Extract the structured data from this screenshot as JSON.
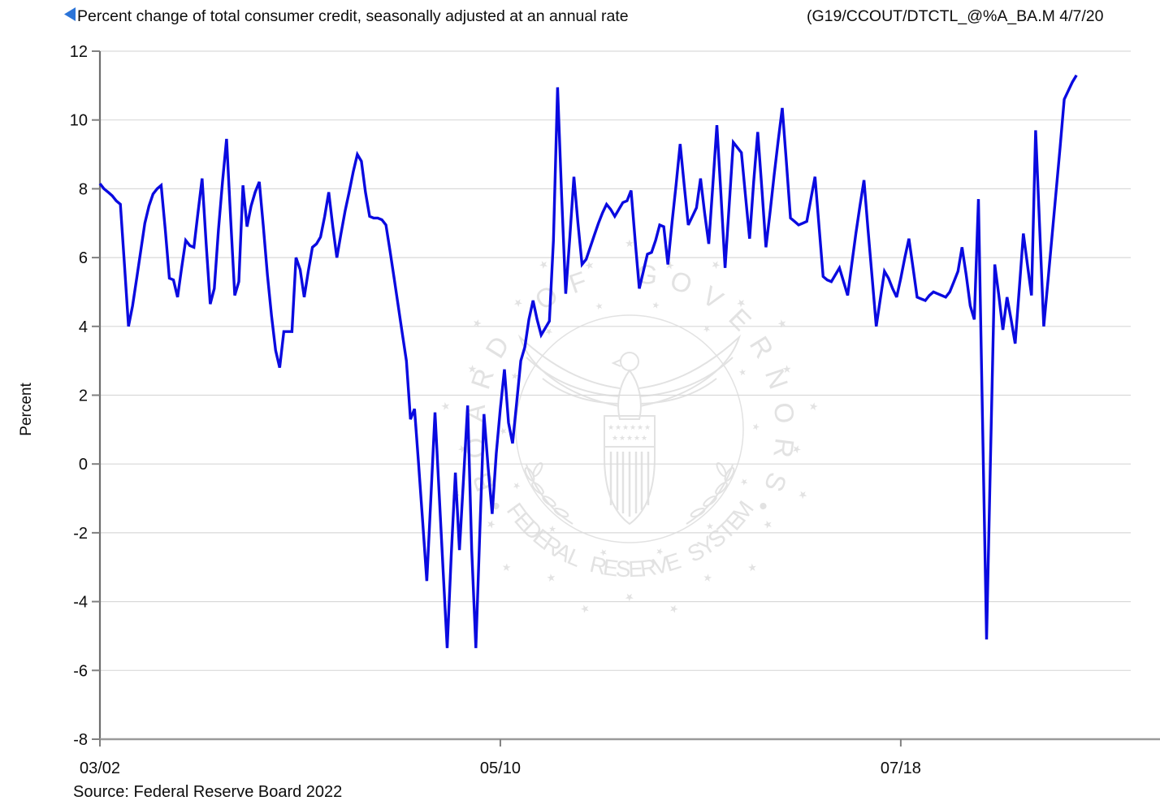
{
  "header": {
    "title": "Percent change of total consumer credit, seasonally adjusted at an annual rate",
    "series_code": "(G19/CCOUT/DTCTL_@%A_BA.M 4/7/20",
    "arrow_icon": "left-triangle-icon",
    "arrow_color": "#2b74d8"
  },
  "footer": {
    "source": "Source: Federal Reserve Board 2022"
  },
  "watermark": {
    "name": "federal-reserve-seal",
    "top_text": "BOARD OF GOVERNORS",
    "bottom_text": "FEDERAL RESERVE SYSTEM",
    "separator_glyph": "•",
    "star_glyph": "★",
    "color": "#e2e2e2"
  },
  "chart_data": {
    "type": "line",
    "title": "Percent change of total consumer credit, seasonally adjusted at an annual rate",
    "xlabel": "",
    "ylabel": "Percent",
    "ylim": [
      -8,
      12
    ],
    "y_ticks": [
      -8,
      -6,
      -4,
      -2,
      0,
      2,
      4,
      6,
      8,
      10,
      12
    ],
    "x_tick_labels": [
      {
        "label": "03/02",
        "month_index": 0
      },
      {
        "label": "05/10",
        "month_index": 98
      },
      {
        "label": "07/18",
        "month_index": 196
      }
    ],
    "frequency": "monthly",
    "x_start": "2002-03",
    "x_end": "2022-02",
    "grid": "horizontal",
    "legend": "none",
    "line_color": "#0a0ae0",
    "grid_color": "#d9d9d9",
    "axis_color": "#808080",
    "values": [
      8.15,
      8.0,
      7.9,
      7.8,
      7.65,
      7.55,
      5.8,
      4.0,
      4.6,
      5.4,
      6.2,
      7.0,
      7.5,
      7.85,
      8.0,
      8.1,
      6.8,
      5.4,
      5.35,
      4.85,
      5.7,
      6.5,
      6.35,
      6.3,
      7.3,
      8.3,
      6.4,
      4.65,
      5.1,
      6.8,
      8.2,
      9.45,
      7.1,
      4.9,
      5.3,
      8.1,
      6.9,
      7.5,
      7.9,
      8.2,
      6.9,
      5.5,
      4.3,
      3.3,
      2.8,
      3.85,
      3.85,
      3.85,
      6.0,
      5.65,
      4.85,
      5.6,
      6.3,
      6.4,
      6.6,
      7.2,
      7.9,
      6.9,
      6.0,
      6.7,
      7.35,
      7.9,
      8.5,
      9.0,
      8.8,
      7.9,
      7.2,
      7.15,
      7.15,
      7.1,
      6.95,
      6.2,
      5.4,
      4.6,
      3.8,
      3.0,
      1.3,
      1.6,
      0.0,
      -1.7,
      -3.4,
      -1.0,
      1.5,
      -0.8,
      -3.1,
      -5.35,
      -2.6,
      -0.25,
      -2.5,
      -0.4,
      1.7,
      -2.5,
      -5.35,
      -1.9,
      1.45,
      -0.1,
      -1.45,
      0.3,
      1.6,
      2.75,
      1.2,
      0.6,
      1.8,
      3.0,
      3.4,
      4.2,
      4.75,
      4.2,
      3.75,
      3.95,
      4.15,
      6.5,
      10.95,
      7.8,
      4.95,
      6.6,
      8.35,
      7.0,
      5.8,
      5.95,
      6.3,
      6.65,
      7.0,
      7.3,
      7.55,
      7.4,
      7.2,
      7.4,
      7.6,
      7.65,
      7.95,
      6.5,
      5.1,
      5.6,
      6.1,
      6.15,
      6.5,
      6.95,
      6.9,
      5.8,
      7.0,
      8.1,
      9.3,
      8.1,
      6.95,
      7.2,
      7.45,
      8.3,
      7.3,
      6.4,
      8.1,
      9.85,
      7.8,
      5.7,
      7.5,
      9.35,
      9.2,
      9.05,
      7.8,
      6.55,
      8.2,
      9.65,
      8.0,
      6.3,
      7.3,
      8.4,
      9.4,
      10.35,
      8.8,
      7.15,
      7.05,
      6.95,
      7.0,
      7.05,
      7.7,
      8.35,
      6.9,
      5.45,
      5.35,
      5.3,
      5.5,
      5.7,
      5.3,
      4.9,
      5.8,
      6.7,
      7.5,
      8.25,
      6.8,
      5.4,
      4.0,
      4.8,
      5.6,
      5.4,
      5.1,
      4.85,
      5.4,
      6.0,
      6.55,
      5.7,
      4.85,
      4.8,
      4.75,
      4.9,
      5.0,
      4.95,
      4.9,
      4.85,
      5.0,
      5.3,
      5.6,
      6.3,
      5.5,
      4.6,
      4.2,
      7.7,
      1.3,
      -5.1,
      0.35,
      5.8,
      4.9,
      3.9,
      4.85,
      4.2,
      3.5,
      5.1,
      6.7,
      5.8,
      4.9,
      9.7,
      6.85,
      4.0,
      5.3,
      6.6,
      7.9,
      9.2,
      10.6,
      10.85,
      11.1,
      11.3
    ]
  }
}
